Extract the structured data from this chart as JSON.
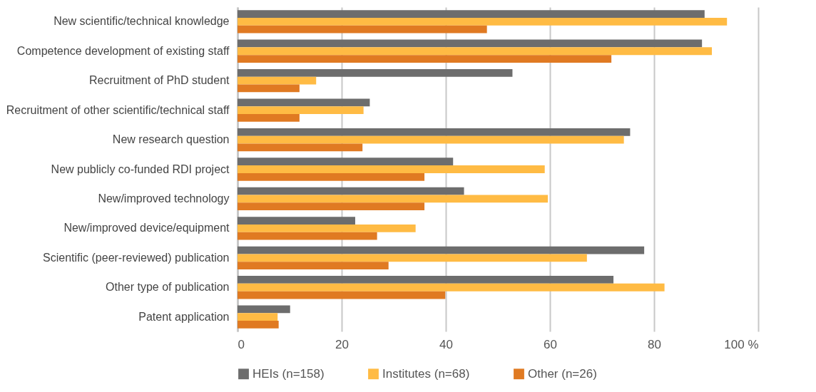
{
  "chart_data": {
    "type": "bar",
    "orientation": "horizontal",
    "categories": [
      "New scientific/technical knowledge",
      "Competence development of existing staff",
      "Recruitment of PhD student",
      "Recruitment of other scientific/technical staff",
      "New research question",
      "New publicly co-funded RDI project",
      "New/improved technology",
      "New/improved device/equipment",
      "Scientific (peer-reviewed) publication",
      "Other type of publication",
      "Patent application"
    ],
    "series": [
      {
        "name": "HEIs (n=158)",
        "color": "#6d6d6d",
        "values": [
          89.7,
          89.2,
          52.8,
          25.4,
          75.4,
          41.4,
          43.5,
          22.6,
          78.1,
          72.2,
          10.1
        ]
      },
      {
        "name": "Institutes (n=68)",
        "color": "#ffbb44",
        "values": [
          94.0,
          91.1,
          15.1,
          24.2,
          74.2,
          59.0,
          59.6,
          34.2,
          67.1,
          82.0,
          7.7
        ]
      },
      {
        "name": "Other (n=26)",
        "color": "#e07a22",
        "values": [
          47.9,
          71.8,
          11.9,
          11.9,
          24.0,
          35.9,
          35.9,
          26.8,
          29.0,
          39.9,
          7.9
        ]
      }
    ],
    "xlim": [
      0,
      100
    ],
    "xticks": [
      0,
      20,
      40,
      60,
      80,
      {
        "value": 100,
        "label": "100 %"
      }
    ],
    "grid": "x",
    "legend": "bottom"
  }
}
